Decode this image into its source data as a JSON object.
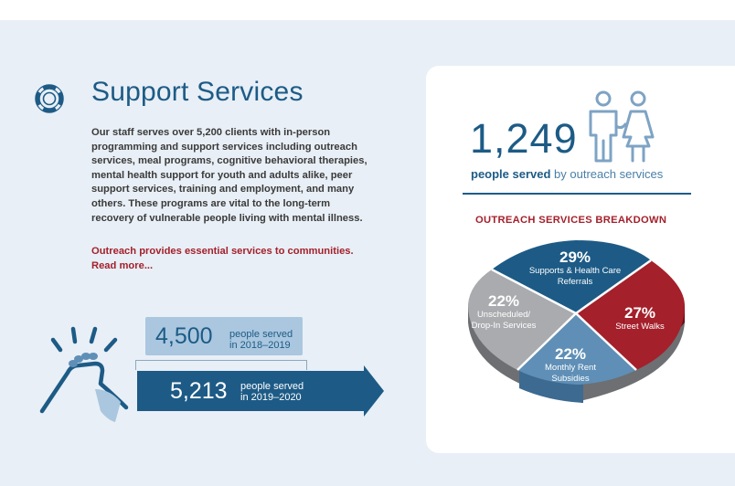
{
  "section": {
    "title": "Support Services",
    "icon": "lifebuoy-icon",
    "body_lines": [
      "Our staff serves over 5,200 clients with in-person",
      "programming and support services including outreach",
      "services, meal programs, cognitive behavioral therapies,",
      "mental health support for youth and adults alike, peer",
      "support services, training and employment, and many",
      "others. These programs are vital to the long-term",
      "recovery of vulnerable people living with mental illness."
    ],
    "cta_line1": "Outreach provides essential services to communities.",
    "cta_line2": "Read more..."
  },
  "stats": {
    "prior": {
      "value": "4,500",
      "label_line1": "people served",
      "label_line2": "in 2018–2019"
    },
    "current": {
      "value": "5,213",
      "label_line1": "people served",
      "label_line2": "in 2019–2020"
    }
  },
  "outreach": {
    "count": "1,249",
    "served_bold": "people served",
    "served_rest": " by outreach services",
    "breakdown_title": "OUTREACH SERVICES BREAKDOWN",
    "slices": [
      {
        "pct": "29%",
        "line1": "Supports & Health Care",
        "line2": "Referrals",
        "value": 29,
        "color": "#1d5b86"
      },
      {
        "pct": "27%",
        "line1": "Street Walks",
        "line2": "",
        "value": 27,
        "color": "#a4202b"
      },
      {
        "pct": "22%",
        "line1": "Monthly Rent",
        "line2": "Subsidies",
        "value": 22,
        "color": "#5f8fb6"
      },
      {
        "pct": "22%",
        "line1": "Unscheduled/",
        "line2": "Drop-In Services",
        "value": 22,
        "color": "#a9abae"
      }
    ]
  },
  "colors": {
    "brand_blue": "#1d5b86",
    "accent_red": "#a4202b",
    "light_blue": "#aac7df",
    "band": "#e8eff6"
  }
}
